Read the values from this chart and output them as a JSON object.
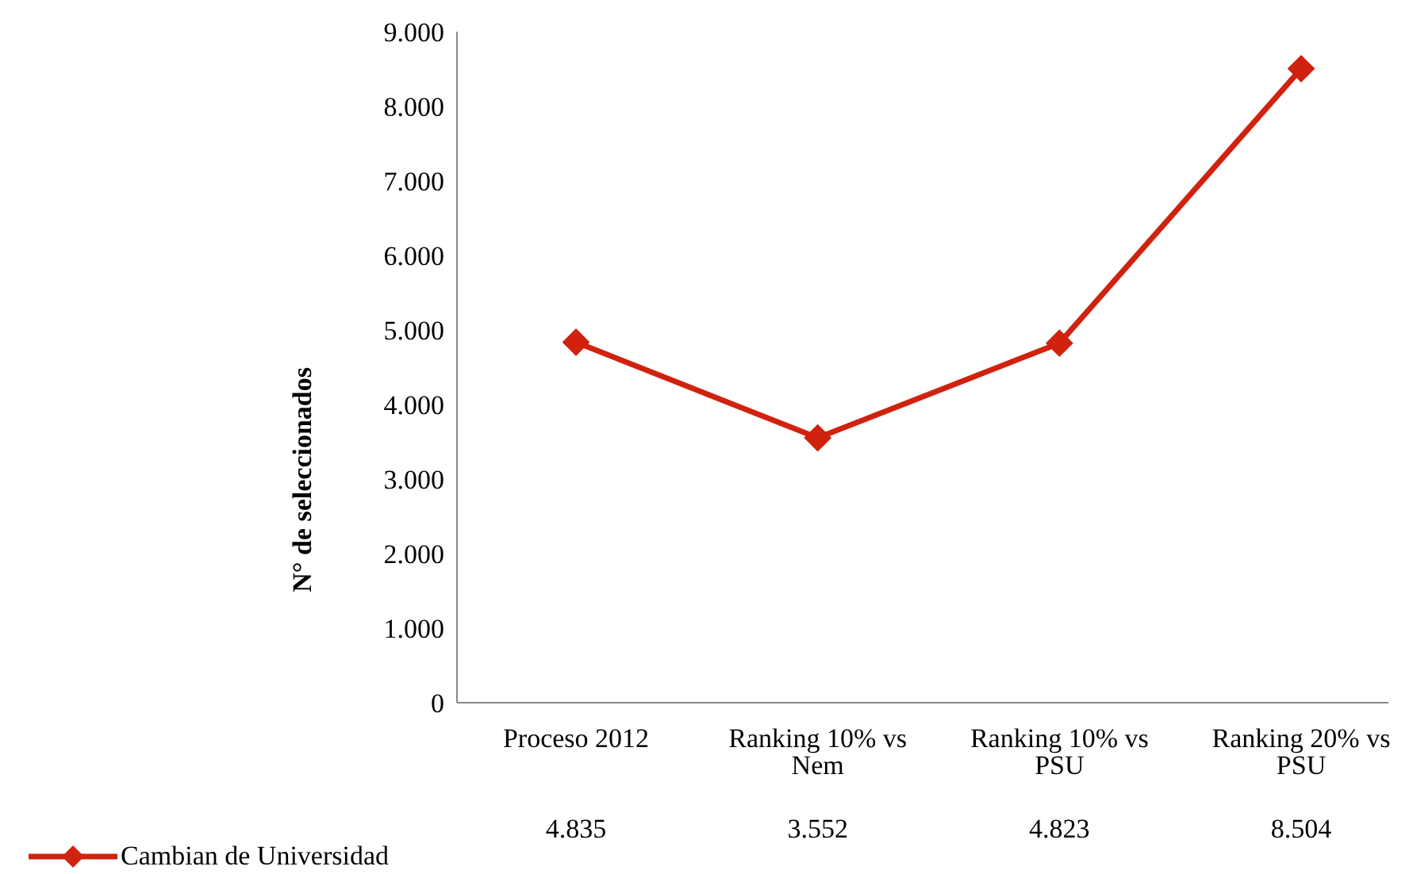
{
  "chart_data": {
    "type": "line",
    "ylabel": "N° de seleccionados",
    "categories": [
      "Proceso 2012",
      "Ranking 10% vs Nem",
      "Ranking 10% vs PSU",
      "Ranking 20% vs PSU"
    ],
    "series": [
      {
        "name": "Cambian de Universidad",
        "color": "#d0220e",
        "values": [
          4835,
          3552,
          4823,
          8504
        ],
        "value_labels": [
          "4.835",
          "3.552",
          "4.823",
          "8.504"
        ]
      }
    ],
    "ylim": [
      0,
      9000
    ],
    "yticks": [
      {
        "value": 0,
        "label": "0"
      },
      {
        "value": 1000,
        "label": "1.000"
      },
      {
        "value": 2000,
        "label": "2.000"
      },
      {
        "value": 3000,
        "label": "3.000"
      },
      {
        "value": 4000,
        "label": "4.000"
      },
      {
        "value": 5000,
        "label": "5.000"
      },
      {
        "value": 6000,
        "label": "6.000"
      },
      {
        "value": 7000,
        "label": "7.000"
      },
      {
        "value": 8000,
        "label": "8.000"
      },
      {
        "value": 9000,
        "label": "9.000"
      }
    ],
    "grid": false,
    "legend": "bottom left",
    "marker": "diamond",
    "line_style": "solid"
  }
}
